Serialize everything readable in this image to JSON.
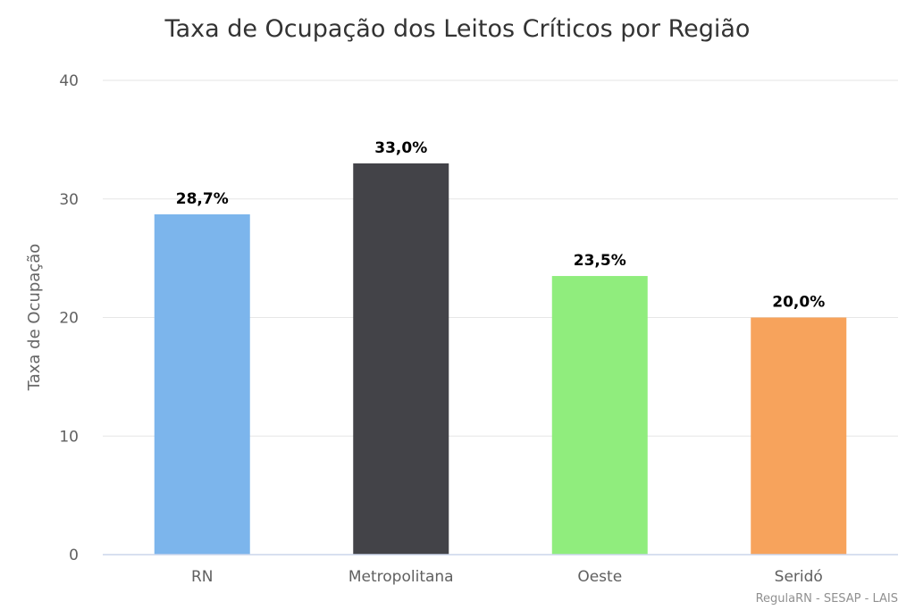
{
  "chart_data": {
    "type": "bar",
    "title": "Taxa de Ocupação dos Leitos Críticos por Região",
    "ylabel": "Taxa de Ocupação",
    "xlabel": "",
    "categories": [
      "RN",
      "Metropolitana",
      "Oeste",
      "Seridó"
    ],
    "values": [
      28.7,
      33.0,
      23.5,
      20.0
    ],
    "data_labels": [
      "28,7%",
      "33,0%",
      "23,5%",
      "20,0%"
    ],
    "colors": [
      "#7cb5ec",
      "#434348",
      "#90ed7d",
      "#f7a35c"
    ],
    "ylim": [
      0,
      40
    ],
    "yticks": [
      0,
      10,
      20,
      30,
      40
    ],
    "grid": true,
    "legend": "none"
  },
  "credits": "RegulaRN - SESAP - LAIS"
}
